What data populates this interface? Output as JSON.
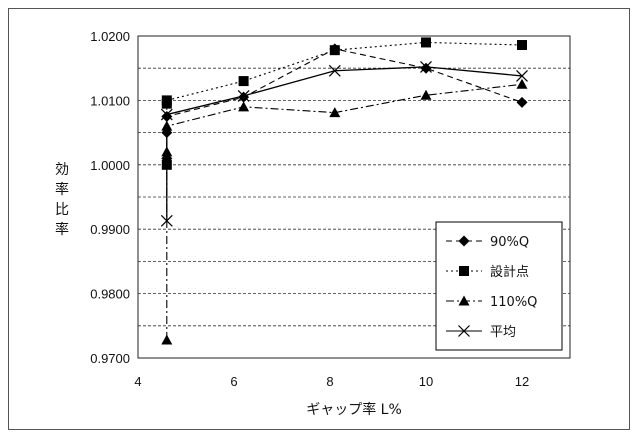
{
  "chart_data": {
    "type": "line",
    "title": "",
    "xlabel": "ギャップ率 L%",
    "ylabel": "効率比率",
    "xlim": [
      4,
      13
    ],
    "ylim": [
      0.97,
      1.02
    ],
    "xticks": [
      "4",
      "6",
      "8",
      "10",
      "12"
    ],
    "yticks": [
      "0.9700",
      "0.9800",
      "0.9900",
      "1.0000",
      "1.0100",
      "1.0200"
    ],
    "grid": "horizontal dashed",
    "legend_position": "right-bottom",
    "series": [
      {
        "name": "90%Q",
        "marker": "diamond",
        "line": "dash",
        "x": [
          4.6,
          4.6,
          4.6,
          6.2,
          8.1,
          10.0,
          12.0
        ],
        "y": [
          1.001,
          1.005,
          1.0075,
          1.0105,
          1.018,
          1.015,
          1.0097
        ]
      },
      {
        "name": "設計点",
        "marker": "square",
        "line": "dot",
        "x": [
          4.6,
          4.6,
          4.6,
          6.2,
          8.1,
          10.0,
          12.0
        ],
        "y": [
          1.0,
          1.0095,
          1.01,
          1.013,
          1.0178,
          1.019,
          1.0186
        ]
      },
      {
        "name": "110%Q",
        "marker": "triangle",
        "line": "dashdot",
        "x": [
          4.6,
          4.6,
          4.6,
          6.2,
          8.1,
          10.0,
          12.0
        ],
        "y": [
          0.9728,
          1.002,
          1.006,
          1.009,
          1.0081,
          1.0108,
          1.0125
        ]
      },
      {
        "name": "平均",
        "marker": "x",
        "line": "solid",
        "x": [
          4.6,
          4.6,
          6.2,
          8.1,
          10.0,
          12.0
        ],
        "y": [
          0.9913,
          1.0078,
          1.0107,
          1.0146,
          1.0152,
          1.0138
        ]
      }
    ]
  }
}
